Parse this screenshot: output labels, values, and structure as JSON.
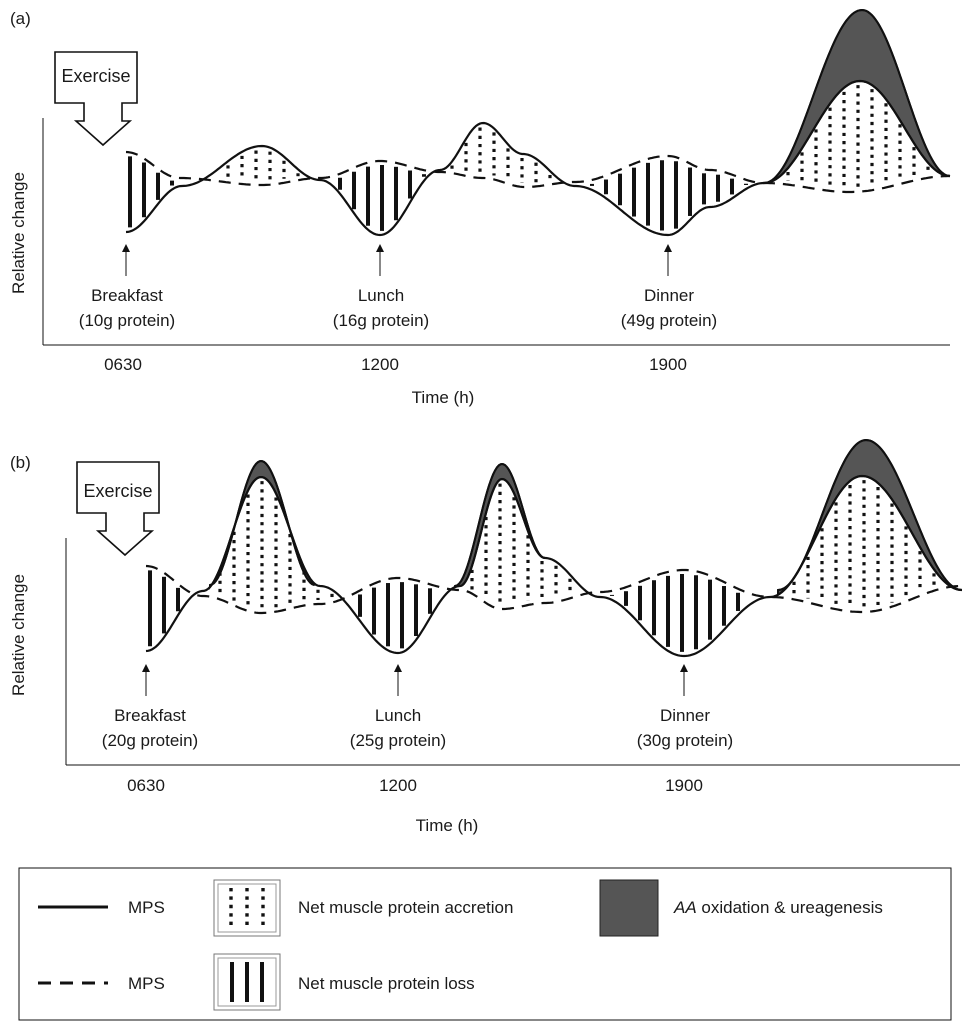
{
  "panels": [
    {
      "letter": "(a)",
      "exercise": "Exercise",
      "ylabel": "Relative change",
      "xlabel": "Time (h)",
      "ticks": [
        "0630",
        "1200",
        "1900"
      ],
      "meals": [
        {
          "name": "Breakfast",
          "protein": "(10g protein)"
        },
        {
          "name": "Lunch",
          "protein": "(16g protein)"
        },
        {
          "name": "Dinner",
          "protein": "(49g protein)"
        }
      ]
    },
    {
      "letter": "(b)",
      "exercise": "Exercise",
      "ylabel": "Relative change",
      "xlabel": "Time (h)",
      "ticks": [
        "0630",
        "1200",
        "1900"
      ],
      "meals": [
        {
          "name": "Breakfast",
          "protein": "(20g protein)"
        },
        {
          "name": "Lunch",
          "protein": "(25g protein)"
        },
        {
          "name": "Dinner",
          "protein": "(30g protein)"
        }
      ]
    }
  ],
  "legend": {
    "solid": "MPS",
    "dashed": "MPS",
    "accretion": "Net muscle protein accretion",
    "loss": "Net muscle protein loss",
    "oxidation_italic": "AA",
    "oxidation_rest": " oxidation & ureagenesis"
  },
  "colors": {
    "line": "#111111",
    "oxidation_fill": "#555555"
  }
}
